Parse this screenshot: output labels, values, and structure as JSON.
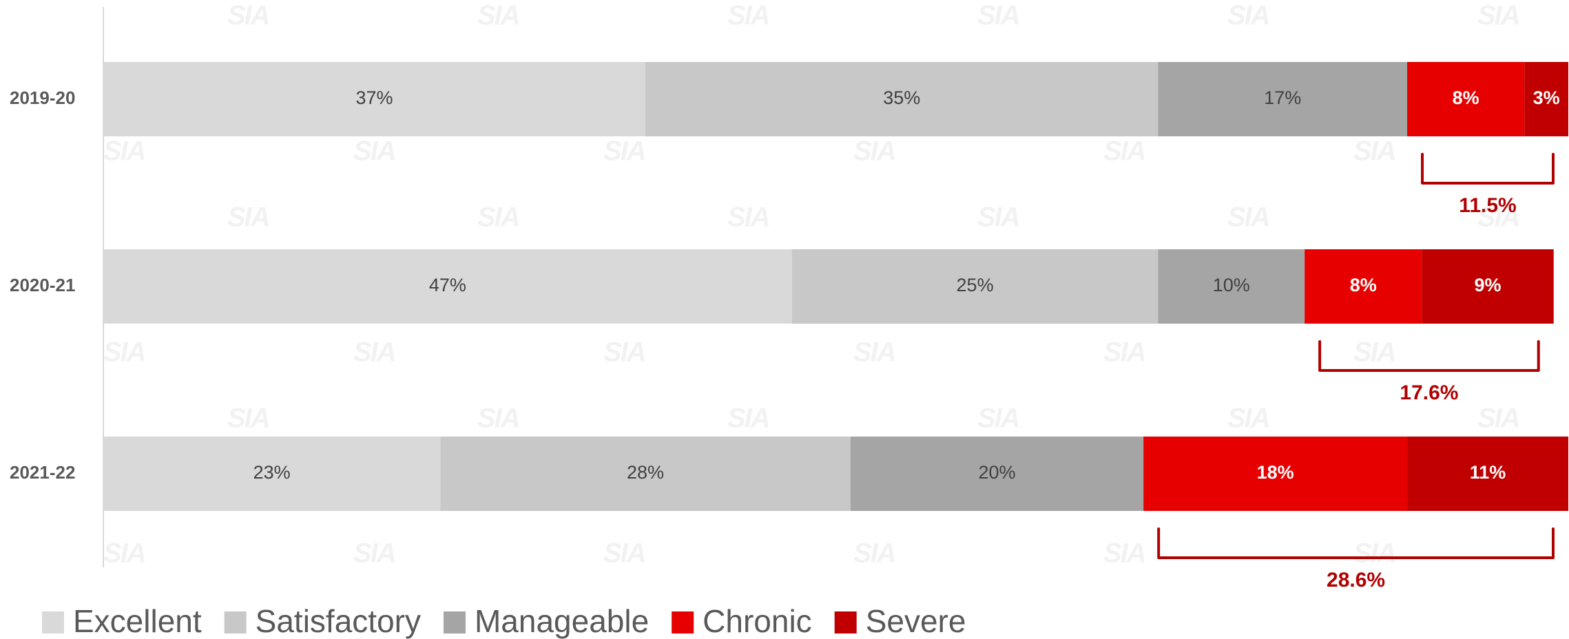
{
  "chart_data": {
    "type": "stacked_barh",
    "categories": [
      "2019-20",
      "2020-21",
      "2021-22"
    ],
    "series": [
      {
        "name": "Excellent",
        "color": "#d9d9d9",
        "values": [
          37,
          47,
          23
        ]
      },
      {
        "name": "Satisfactory",
        "color": "#c8c8c8",
        "values": [
          35,
          25,
          28
        ]
      },
      {
        "name": "Manageable",
        "color": "#a5a5a5",
        "values": [
          17,
          10,
          20
        ]
      },
      {
        "name": "Chronic",
        "color": "#e60000",
        "values": [
          8,
          8,
          18
        ]
      },
      {
        "name": "Severe",
        "color": "#c00000",
        "values": [
          3,
          9,
          11
        ]
      }
    ],
    "value_labels": [
      [
        "37%",
        "47%",
        "23%"
      ],
      [
        "35%",
        "25%",
        "28%"
      ],
      [
        "17%",
        "10%",
        "20%"
      ],
      [
        "8%",
        "8%",
        "18%"
      ],
      [
        "3%",
        "9%",
        "11%"
      ]
    ],
    "xlim": [
      0,
      100
    ],
    "annotations": [
      "11.5%",
      "17.6%",
      "28.6%"
    ],
    "watermark": "SIA",
    "legend": "bottom-left"
  }
}
